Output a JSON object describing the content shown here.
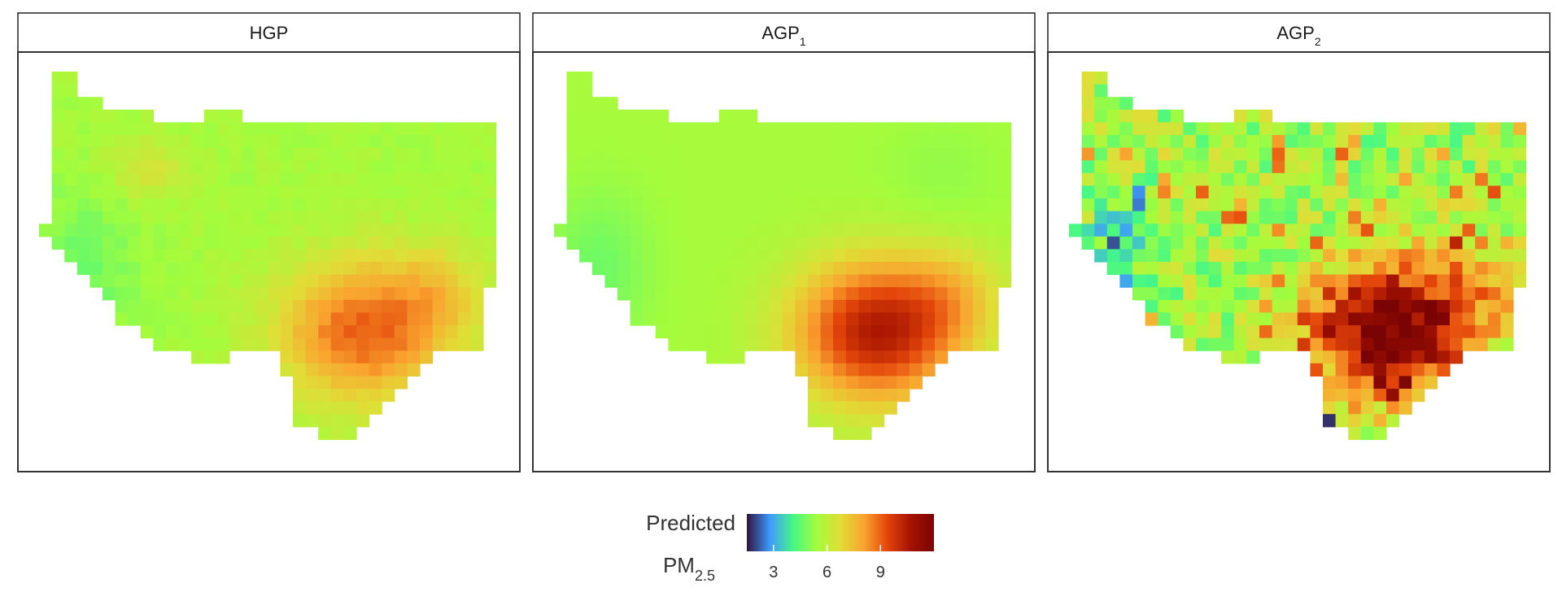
{
  "chart_data": {
    "type": "heatmap",
    "facets": [
      {
        "id": "HGP",
        "base": "HGP",
        "sub": ""
      },
      {
        "id": "AGP1",
        "base": "AGP",
        "sub": "1"
      },
      {
        "id": "AGP2",
        "base": "AGP",
        "sub": "2"
      }
    ],
    "grid_columns": 36,
    "grid_rows": 30,
    "colorbar": {
      "title_line1": "Predicted",
      "title_line2_base": "PM",
      "title_line2_sub": "2.5",
      "ticks": [
        "3",
        "6",
        "9"
      ],
      "tick_values": [
        3,
        6,
        9
      ],
      "range": [
        1.5,
        12
      ],
      "palette": [
        "#30123b",
        "#3e9bfe",
        "#46f884",
        "#a4fc3c",
        "#e1dd37",
        "#f9a42f",
        "#e4460a",
        "#a51301",
        "#7a0403"
      ]
    },
    "hotspot_peaks": {
      "HGP": 9.0,
      "AGP1": 10.5,
      "AGP2": 12.0
    },
    "background_level": 5.5,
    "grid": false
  }
}
